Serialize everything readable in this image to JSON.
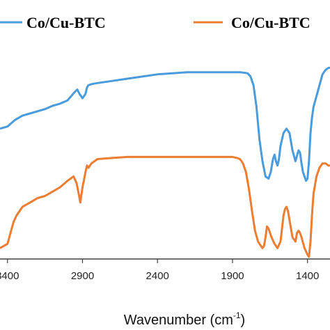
{
  "chart_data": {
    "type": "line",
    "xlabel": "Wavenumber (cm",
    "xlabel_sup": "-1",
    "xlabel_close": ")",
    "xlim": [
      3450,
      1250
    ],
    "x_reversed": true,
    "xticks": [
      3400,
      2900,
      2400,
      1900,
      1400
    ],
    "xtick_labels": [
      "3400",
      "2900",
      "2400",
      "1900",
      "1400"
    ],
    "ylim": [
      0,
      100
    ],
    "legend_placement": "top",
    "series": [
      {
        "name": "Co/Cu-BTC",
        "color": "#4a9bdc",
        "x": [
          3450,
          3400,
          3350,
          3300,
          3250,
          3200,
          3150,
          3100,
          3050,
          3000,
          2975,
          2950,
          2935,
          2920,
          2900,
          2880,
          2870,
          2860,
          2840,
          2800,
          2700,
          2600,
          2500,
          2400,
          2300,
          2200,
          2100,
          2000,
          1900,
          1850,
          1800,
          1780,
          1760,
          1740,
          1720,
          1700,
          1680,
          1660,
          1645,
          1630,
          1620,
          1610,
          1600,
          1590,
          1580,
          1560,
          1540,
          1520,
          1500,
          1480,
          1460,
          1450,
          1440,
          1430,
          1420,
          1410,
          1400,
          1390,
          1380,
          1370,
          1360,
          1340,
          1320,
          1300,
          1280,
          1260,
          1250
        ],
        "y": [
          60,
          61,
          64,
          66,
          67,
          68,
          69,
          70.5,
          71.5,
          73,
          75,
          77,
          78,
          76,
          74,
          76,
          79,
          80,
          80.5,
          81,
          82,
          83,
          84,
          85,
          85.5,
          86,
          86,
          86,
          86,
          86,
          85.5,
          84,
          80,
          70,
          55,
          45,
          38,
          37,
          40,
          46,
          48,
          45,
          43,
          46,
          52,
          58,
          60,
          58,
          50,
          45,
          50,
          49,
          44,
          40,
          38,
          36,
          37,
          45,
          58,
          65,
          70,
          75,
          80,
          85,
          87,
          88,
          88
        ]
      },
      {
        "name": "Co/Cu-BTC",
        "color": "#ed7d31",
        "x": [
          3450,
          3400,
          3380,
          3360,
          3340,
          3320,
          3300,
          3250,
          3200,
          3150,
          3100,
          3050,
          3000,
          2960,
          2940,
          2925,
          2915,
          2900,
          2880,
          2870,
          2860,
          2840,
          2800,
          2700,
          2600,
          2500,
          2400,
          2300,
          2200,
          2100,
          2000,
          1950,
          1900,
          1870,
          1850,
          1830,
          1810,
          1790,
          1770,
          1750,
          1730,
          1710,
          1700,
          1690,
          1680,
          1670,
          1660,
          1640,
          1620,
          1600,
          1580,
          1570,
          1560,
          1550,
          1540,
          1530,
          1520,
          1500,
          1480,
          1470,
          1460,
          1450,
          1440,
          1420,
          1400,
          1390,
          1380,
          1370,
          1360,
          1340,
          1320,
          1300,
          1280,
          1260,
          1250
        ],
        "y": [
          5,
          7,
          12,
          17,
          20,
          22,
          24,
          26,
          28,
          29,
          31,
          33,
          36,
          38,
          35,
          30,
          26,
          33,
          40,
          43,
          42,
          44,
          46,
          46.5,
          47,
          47,
          47,
          47,
          47,
          47,
          47,
          47,
          47,
          46.5,
          46,
          44,
          40,
          32,
          22,
          13,
          8,
          6,
          5,
          6,
          10,
          15,
          14,
          10,
          7,
          5,
          8,
          14,
          20,
          23,
          24,
          22,
          18,
          10,
          8,
          12,
          13,
          12,
          10,
          5,
          2,
          1,
          8,
          20,
          30,
          38,
          42,
          44,
          44,
          43,
          43
        ]
      }
    ]
  }
}
